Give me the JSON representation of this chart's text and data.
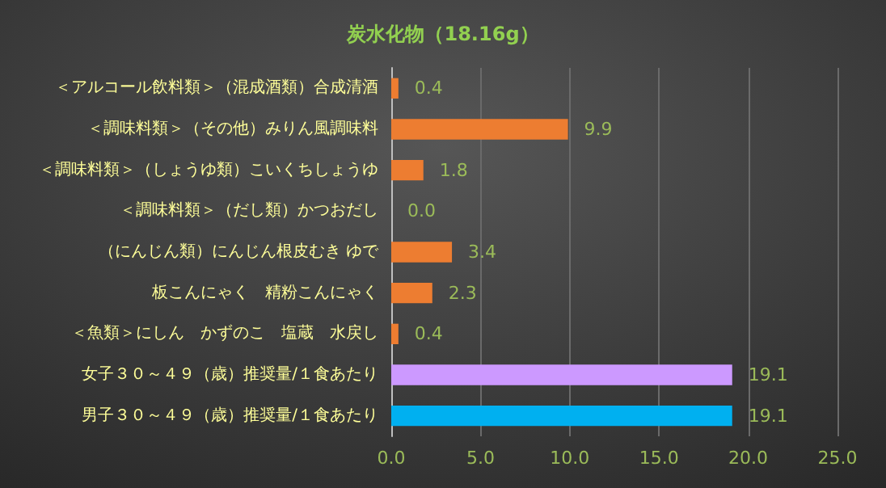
{
  "chart_data": {
    "type": "bar",
    "orientation": "horizontal",
    "title": "炭水化物（18.16g）",
    "categories": [
      "＜アルコール飲料類＞（混成酒類）合成清酒",
      "＜調味料類＞（その他）みりん風調味料",
      "＜調味料類＞（しょうゆ類）こいくちしょうゆ",
      "＜調味料類＞（だし類）かつおだし",
      "（にんじん類）にんじん根皮むき ゆで",
      "板こんにゃく　精粉こんにゃく",
      "＜魚類＞にしん　かずのこ　塩蔵　水戻し",
      "女子３０～４９（歳）推奨量/１食あたり",
      "男子３０～４９（歳）推奨量/１食あたり"
    ],
    "values": [
      0.4,
      9.9,
      1.8,
      0.0,
      3.4,
      2.3,
      0.4,
      19.1,
      19.1
    ],
    "colors": [
      "#ed7d31",
      "#ed7d31",
      "#ed7d31",
      "#ed7d31",
      "#ed7d31",
      "#ed7d31",
      "#ed7d31",
      "#cc99ff",
      "#00b0f0"
    ],
    "value_labels": [
      "0.4",
      "9.9",
      "1.8",
      "0.0",
      "3.4",
      "2.3",
      "0.4",
      "19.1",
      "19.1"
    ],
    "xlim": [
      0,
      25
    ],
    "xticks": [
      {
        "value": 0,
        "label": "0.0"
      },
      {
        "value": 5,
        "label": "5.0"
      },
      {
        "value": 10,
        "label": "10.0"
      },
      {
        "value": 15,
        "label": "15.0"
      },
      {
        "value": 20,
        "label": "20.0"
      },
      {
        "value": 25,
        "label": "25.0"
      }
    ],
    "grid": "x"
  }
}
